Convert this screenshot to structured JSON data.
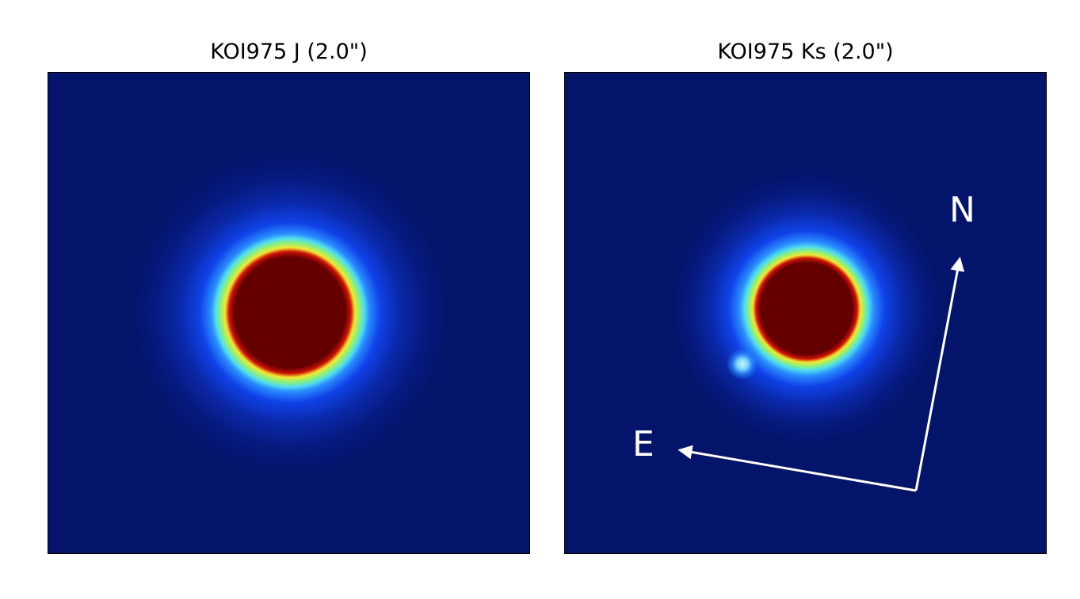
{
  "panels": [
    {
      "title": "KOI975 J (2.0\")"
    },
    {
      "title": "KOI975 Ks (2.0\")"
    }
  ],
  "compass": {
    "north_label": "N",
    "east_label": "E"
  },
  "colors": {
    "background": "#04146b",
    "halo_blue": "#1050ff",
    "ring_cyan": "#62f0d8",
    "ring_yellow": "#f2ec3a",
    "ring_red": "#d8140c",
    "core": "#640000",
    "arrow": "#ffffff"
  }
}
